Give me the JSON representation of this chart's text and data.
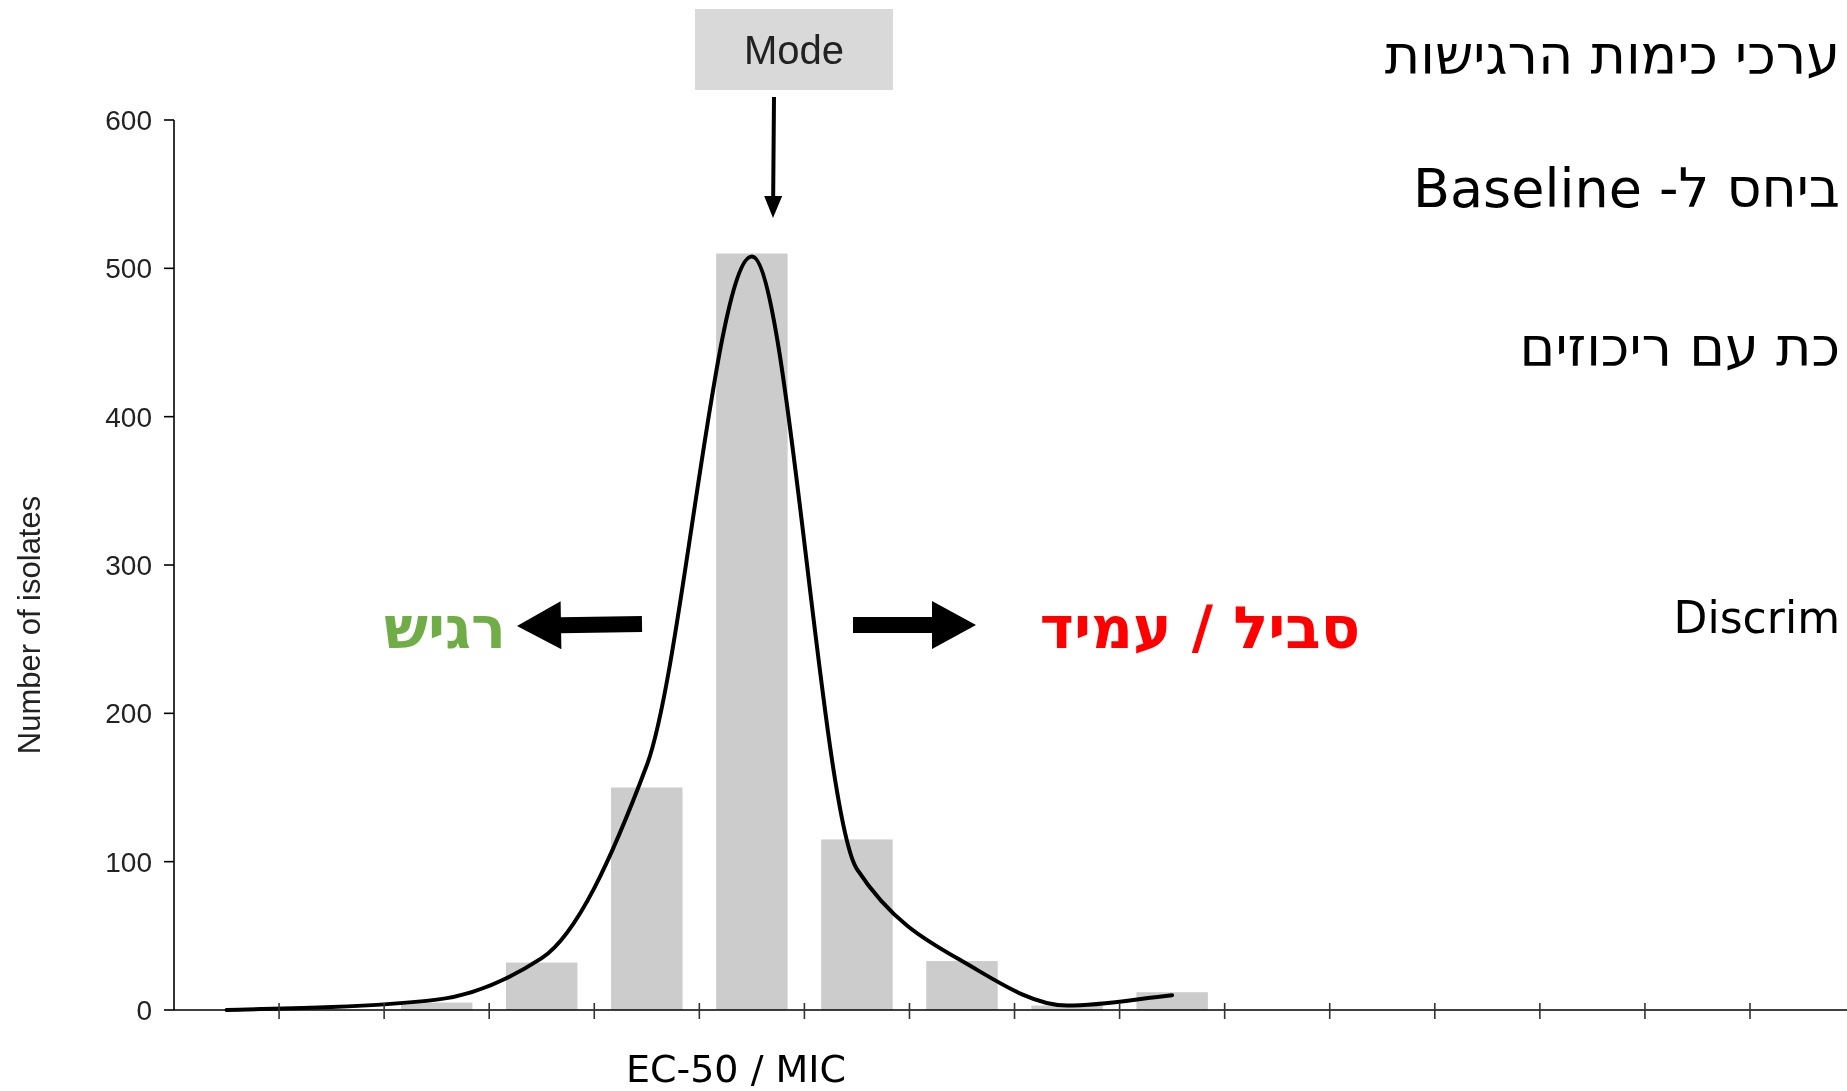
{
  "chart_data": {
    "type": "bar",
    "ylabel": "Number of isolates",
    "xlabel": "EC-50 / MIC",
    "categories": [
      null,
      null,
      null,
      null,
      null,
      null,
      null,
      null,
      null,
      null,
      null,
      null,
      null,
      null,
      null
    ],
    "ylim": [
      0,
      600
    ],
    "yticks": [
      0,
      100,
      200,
      300,
      400,
      500,
      600
    ],
    "grid": false,
    "series": [
      {
        "color": "#cccccc",
        "values": [
          0,
          0,
          5,
          32,
          150,
          510,
          115,
          33,
          3,
          12,
          0,
          0,
          0,
          0,
          0
        ]
      },
      {
        "type": "line",
        "color": "#000000",
        "values": [
          0,
          2,
          7,
          35,
          165,
          508,
          95,
          33,
          3,
          10,
          null,
          null,
          null,
          null,
          null
        ]
      }
    ],
    "annotations": [
      "Mode",
      "רגיש",
      "סביל / עמיד",
      "ערכי כימות הרגישות",
      "ביחס ל- Baseline",
      "כת עם ריכוזים",
      "Discrim"
    ]
  }
}
